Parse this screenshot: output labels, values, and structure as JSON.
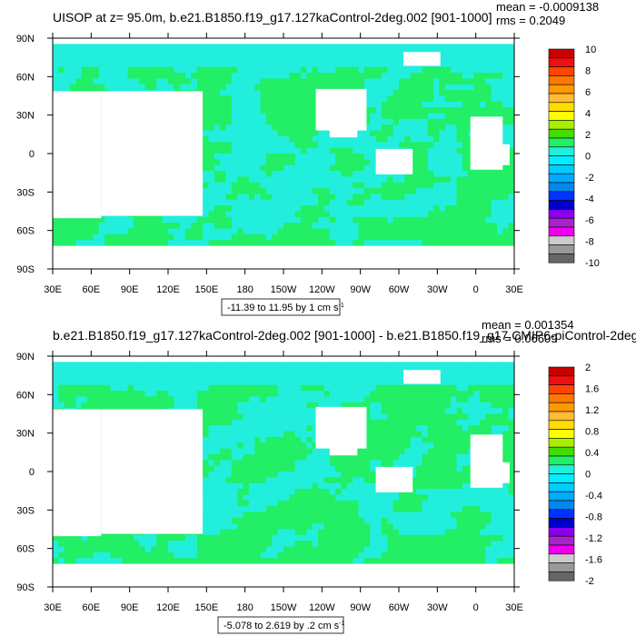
{
  "colors": {
    "background": "#ffffff",
    "land": "#ffffff",
    "frame": "#000000",
    "field_primary": "#22ee66",
    "field_secondary": "#22eedd"
  },
  "chart_data": [
    {
      "type": "heatmap",
      "title": "UISOP at z=  95.0m, b.e21.B1850.f19_g17.127kaControl-2deg.002 [901-1000]",
      "stats": {
        "mean": "mean = -0.0009138",
        "rms": "rms = 0.2049"
      },
      "range_label": "-11.39 to 11.95 by 1 cm s",
      "units_superscript": "-1",
      "x_ticks": [
        "30E",
        "60E",
        "90E",
        "120E",
        "150E",
        "180",
        "150W",
        "120W",
        "90W",
        "60W",
        "30W",
        "0",
        "30E"
      ],
      "y_ticks": [
        "90N",
        "60N",
        "30N",
        "0",
        "30S",
        "60S",
        "90S"
      ],
      "x_range_deg": [
        30,
        390
      ],
      "y_range_deg": [
        -90,
        90
      ],
      "colorbar": {
        "labels": [
          "10",
          "8",
          "6",
          "4",
          "2",
          "0",
          "-2",
          "-4",
          "-6",
          "-8",
          "-10"
        ],
        "colors": [
          "#c80000",
          "#ee1010",
          "#ff4400",
          "#ff7700",
          "#ff9900",
          "#ffbb33",
          "#ffdd00",
          "#ffff00",
          "#aaee00",
          "#44dd00",
          "#22ee66",
          "#22eedd",
          "#00eeff",
          "#00ccff",
          "#00aaff",
          "#0088ee",
          "#0033ff",
          "#0000cc",
          "#8800ee",
          "#aa22cc",
          "#ee00ee",
          "#cccccc",
          "#999999",
          "#666666"
        ]
      },
      "field_value_range": [
        -11.39,
        11.95
      ],
      "dominant_bins": [
        "0 to 2",
        "-2 to 0"
      ]
    },
    {
      "type": "heatmap",
      "title": "b.e21.B1850.f19_g17.127kaControl-2deg.002 [901-1000] - b.e21.B1850.f19_g17.CMIP6-piControl-2deg.",
      "stats": {
        "mean": "mean = 0.001354",
        "rms": "rms = 0.06609"
      },
      "range_label": "-5.078 to 2.619 by .2 cm s",
      "units_superscript": "-1",
      "x_ticks": [
        "30E",
        "60E",
        "90E",
        "120E",
        "150E",
        "180",
        "150W",
        "120W",
        "90W",
        "60W",
        "30W",
        "0",
        "30E"
      ],
      "y_ticks": [
        "90N",
        "60N",
        "30N",
        "0",
        "30S",
        "60S",
        "90S"
      ],
      "x_range_deg": [
        30,
        390
      ],
      "y_range_deg": [
        -90,
        90
      ],
      "colorbar": {
        "labels": [
          "2",
          "1.6",
          "1.2",
          "0.8",
          "0.4",
          "0",
          "-0.4",
          "-0.8",
          "-1.2",
          "-1.6",
          "-2"
        ],
        "colors": [
          "#c80000",
          "#ee1010",
          "#ff4400",
          "#ff7700",
          "#ff9900",
          "#ffbb33",
          "#ffdd00",
          "#ffff00",
          "#aaee00",
          "#44dd00",
          "#22ee66",
          "#22eedd",
          "#00eeff",
          "#00ccff",
          "#00aaff",
          "#0088ee",
          "#0033ff",
          "#0000cc",
          "#8800ee",
          "#aa22cc",
          "#ee00ee",
          "#cccccc",
          "#999999",
          "#666666"
        ]
      },
      "field_value_range": [
        -5.078,
        2.619
      ],
      "dominant_bins": [
        "0 to 0.2",
        "-0.2 to 0"
      ]
    }
  ]
}
